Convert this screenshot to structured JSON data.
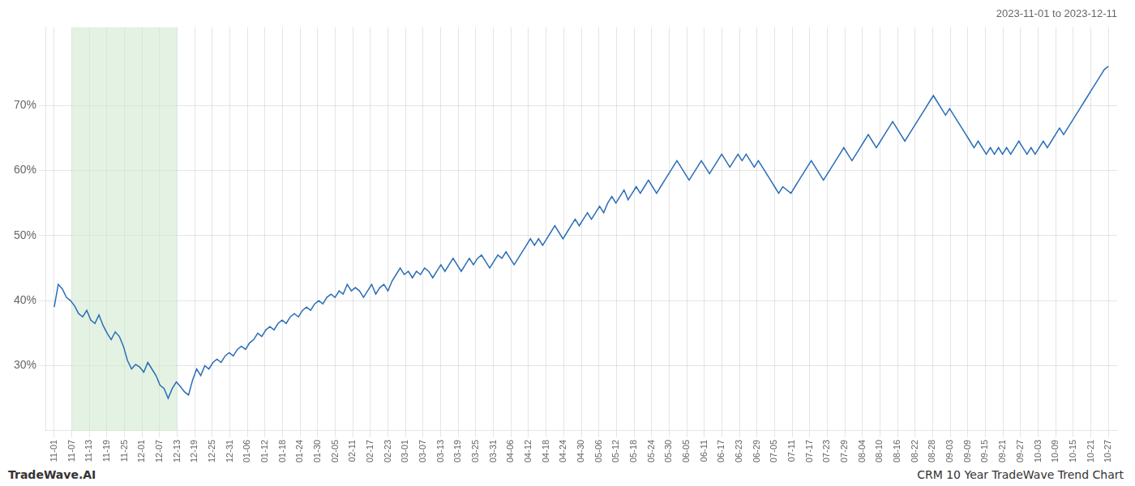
{
  "chart_data": {
    "type": "line",
    "title": "2023-11-01 to 2023-12-11",
    "annotations": [
      "TradeWave.AI",
      "CRM 10 Year TradeWave Trend Chart"
    ],
    "color": "#2a6db5",
    "grid": true,
    "highlight": {
      "x": [
        259,
        1813
      ],
      "color": "#cce8cc"
    },
    "xlim": [
      -129.5,
      15669.5
    ],
    "xticks": [
      {
        "value": 0,
        "label": "11-01"
      },
      {
        "value": 259,
        "label": "11-07"
      },
      {
        "value": 518,
        "label": "11-13"
      },
      {
        "value": 777,
        "label": "11-19"
      },
      {
        "value": 1036,
        "label": "11-25"
      },
      {
        "value": 1295,
        "label": "12-01"
      },
      {
        "value": 1554,
        "label": "12-07"
      },
      {
        "value": 1813,
        "label": "12-13"
      },
      {
        "value": 2072,
        "label": "12-19"
      },
      {
        "value": 2331,
        "label": "12-25"
      },
      {
        "value": 2590,
        "label": "12-31"
      },
      {
        "value": 2849,
        "label": "01-06"
      },
      {
        "value": 3108,
        "label": "01-12"
      },
      {
        "value": 3367,
        "label": "01-18"
      },
      {
        "value": 3626,
        "label": "01-24"
      },
      {
        "value": 3885,
        "label": "01-30"
      },
      {
        "value": 4144,
        "label": "02-05"
      },
      {
        "value": 4403,
        "label": "02-11"
      },
      {
        "value": 4662,
        "label": "02-17"
      },
      {
        "value": 4921,
        "label": "02-23"
      },
      {
        "value": 5180,
        "label": "03-01"
      },
      {
        "value": 5439,
        "label": "03-07"
      },
      {
        "value": 5698,
        "label": "03-13"
      },
      {
        "value": 5957,
        "label": "03-19"
      },
      {
        "value": 6216,
        "label": "03-25"
      },
      {
        "value": 6475,
        "label": "03-31"
      },
      {
        "value": 6734,
        "label": "04-06"
      },
      {
        "value": 6993,
        "label": "04-12"
      },
      {
        "value": 7252,
        "label": "04-18"
      },
      {
        "value": 7511,
        "label": "04-24"
      },
      {
        "value": 7770,
        "label": "04-30"
      },
      {
        "value": 8029,
        "label": "05-06"
      },
      {
        "value": 8288,
        "label": "05-12"
      },
      {
        "value": 8547,
        "label": "05-18"
      },
      {
        "value": 8806,
        "label": "05-24"
      },
      {
        "value": 9065,
        "label": "05-30"
      },
      {
        "value": 9324,
        "label": "06-05"
      },
      {
        "value": 9583,
        "label": "06-11"
      },
      {
        "value": 9842,
        "label": "06-17"
      },
      {
        "value": 10101,
        "label": "06-23"
      },
      {
        "value": 10360,
        "label": "06-29"
      },
      {
        "value": 10619,
        "label": "07-05"
      },
      {
        "value": 10878,
        "label": "07-11"
      },
      {
        "value": 11137,
        "label": "07-17"
      },
      {
        "value": 11396,
        "label": "07-23"
      },
      {
        "value": 11655,
        "label": "07-29"
      },
      {
        "value": 11914,
        "label": "08-04"
      },
      {
        "value": 12173,
        "label": "08-10"
      },
      {
        "value": 12432,
        "label": "08-16"
      },
      {
        "value": 12691,
        "label": "08-22"
      },
      {
        "value": 12950,
        "label": "08-28"
      },
      {
        "value": 13209,
        "label": "09-03"
      },
      {
        "value": 13468,
        "label": "09-09"
      },
      {
        "value": 13727,
        "label": "09-15"
      },
      {
        "value": 13986,
        "label": "09-21"
      },
      {
        "value": 14245,
        "label": "09-27"
      },
      {
        "value": 14504,
        "label": "10-03"
      },
      {
        "value": 14763,
        "label": "10-09"
      },
      {
        "value": 15022,
        "label": "10-15"
      },
      {
        "value": 15281,
        "label": "10-21"
      },
      {
        "value": 15540,
        "label": "10-27"
      }
    ],
    "ylim": [
      20,
      82
    ],
    "yticks": [
      {
        "value": 30,
        "label": "30%"
      },
      {
        "value": 40,
        "label": "40%"
      },
      {
        "value": 50,
        "label": "50%"
      },
      {
        "value": 60,
        "label": "60%"
      },
      {
        "value": 70,
        "label": "70%"
      }
    ],
    "x": [
      0,
      60,
      120,
      180,
      240,
      300,
      360,
      420,
      480,
      540,
      600,
      660,
      720,
      780,
      840,
      900,
      960,
      1020,
      1080,
      1140,
      1200,
      1260,
      1320,
      1380,
      1440,
      1500,
      1560,
      1620,
      1680,
      1740,
      1800,
      1860,
      1920,
      1980,
      2040,
      2100,
      2160,
      2220,
      2280,
      2340,
      2400,
      2460,
      2520,
      2580,
      2640,
      2700,
      2760,
      2820,
      2880,
      2940,
      3000,
      3060,
      3120,
      3180,
      3240,
      3300,
      3360,
      3420,
      3480,
      3540,
      3600,
      3660,
      3720,
      3780,
      3840,
      3900,
      3960,
      4020,
      4080,
      4140,
      4200,
      4260,
      4320,
      4380,
      4440,
      4500,
      4560,
      4620,
      4680,
      4740,
      4800,
      4860,
      4920,
      4980,
      5040,
      5100,
      5160,
      5220,
      5280,
      5340,
      5400,
      5460,
      5520,
      5580,
      5640,
      5700,
      5760,
      5820,
      5880,
      5940,
      6000,
      6060,
      6120,
      6180,
      6240,
      6300,
      6360,
      6420,
      6480,
      6540,
      6600,
      6660,
      6720,
      6780,
      6840,
      6900,
      6960,
      7020,
      7080,
      7140,
      7200,
      7260,
      7320,
      7380,
      7440,
      7500,
      7560,
      7620,
      7680,
      7740,
      7800,
      7860,
      7920,
      7980,
      8040,
      8100,
      8160,
      8220,
      8280,
      8340,
      8400,
      8460,
      8520,
      8580,
      8640,
      8700,
      8760,
      8820,
      8880,
      8940,
      9000,
      9060,
      9120,
      9180,
      9240,
      9300,
      9360,
      9420,
      9480,
      9540,
      9600,
      9660,
      9720,
      9780,
      9840,
      9900,
      9960,
      10020,
      10080,
      10140,
      10200,
      10260,
      10320,
      10380,
      10440,
      10500,
      10560,
      10620,
      10680,
      10740,
      10800,
      10860,
      10920,
      10980,
      11040,
      11100,
      11160,
      11220,
      11280,
      11340,
      11400,
      11460,
      11520,
      11580,
      11640,
      11700,
      11760,
      11820,
      11880,
      11940,
      12000,
      12060,
      12120,
      12180,
      12240,
      12300,
      12360,
      12420,
      12480,
      12540,
      12600,
      12660,
      12720,
      12780,
      12840,
      12900,
      12960,
      13020,
      13080,
      13140,
      13200,
      13260,
      13320,
      13380,
      13440,
      13500,
      13560,
      13620,
      13680,
      13740,
      13800,
      13860,
      13920,
      13980,
      14040,
      14100,
      14160,
      14220,
      14280,
      14340,
      14400,
      14460,
      14520,
      14580,
      14640,
      14700,
      14760,
      14820,
      14880,
      14940,
      15000,
      15060,
      15120,
      15180,
      15240,
      15300,
      15360,
      15420,
      15480,
      15540
    ],
    "values": [
      39.0,
      42.5,
      41.8,
      40.5,
      40.0,
      39.2,
      38.0,
      37.5,
      38.5,
      37.0,
      36.5,
      37.8,
      36.2,
      35.0,
      34.0,
      35.2,
      34.5,
      33.0,
      30.8,
      29.5,
      30.2,
      29.8,
      29.0,
      30.5,
      29.5,
      28.5,
      27.0,
      26.5,
      25.0,
      26.5,
      27.5,
      26.8,
      26.0,
      25.5,
      27.8,
      29.5,
      28.5,
      30.0,
      29.5,
      30.5,
      31.0,
      30.5,
      31.5,
      32.0,
      31.5,
      32.5,
      33.0,
      32.5,
      33.5,
      34.0,
      35.0,
      34.5,
      35.5,
      36.0,
      35.5,
      36.5,
      37.0,
      36.5,
      37.5,
      38.0,
      37.5,
      38.5,
      39.0,
      38.5,
      39.5,
      40.0,
      39.5,
      40.5,
      41.0,
      40.5,
      41.5,
      41.0,
      42.5,
      41.5,
      42.0,
      41.5,
      40.5,
      41.5,
      42.5,
      41.0,
      42.0,
      42.5,
      41.5,
      43.0,
      44.0,
      45.0,
      44.0,
      44.5,
      43.5,
      44.5,
      44.0,
      45.0,
      44.5,
      43.5,
      44.5,
      45.5,
      44.5,
      45.5,
      46.5,
      45.5,
      44.5,
      45.5,
      46.5,
      45.5,
      46.5,
      47.0,
      46.0,
      45.0,
      46.0,
      47.0,
      46.5,
      47.5,
      46.5,
      45.5,
      46.5,
      47.5,
      48.5,
      49.5,
      48.5,
      49.5,
      48.5,
      49.5,
      50.5,
      51.5,
      50.5,
      49.5,
      50.5,
      51.5,
      52.5,
      51.5,
      52.5,
      53.5,
      52.5,
      53.5,
      54.5,
      53.5,
      55.0,
      56.0,
      55.0,
      56.0,
      57.0,
      55.5,
      56.5,
      57.5,
      56.5,
      57.5,
      58.5,
      57.5,
      56.5,
      57.5,
      58.5,
      59.5,
      60.5,
      61.5,
      60.5,
      59.5,
      58.5,
      59.5,
      60.5,
      61.5,
      60.5,
      59.5,
      60.5,
      61.5,
      62.5,
      61.5,
      60.5,
      61.5,
      62.5,
      61.5,
      62.5,
      61.5,
      60.5,
      61.5,
      60.5,
      59.5,
      58.5,
      57.5,
      56.5,
      57.5,
      57.0,
      56.5,
      57.5,
      58.5,
      59.5,
      60.5,
      61.5,
      60.5,
      59.5,
      58.5,
      59.5,
      60.5,
      61.5,
      62.5,
      63.5,
      62.5,
      61.5,
      62.5,
      63.5,
      64.5,
      65.5,
      64.5,
      63.5,
      64.5,
      65.5,
      66.5,
      67.5,
      66.5,
      65.5,
      64.5,
      65.5,
      66.5,
      67.5,
      68.5,
      69.5,
      70.5,
      71.5,
      70.5,
      69.5,
      68.5,
      69.5,
      68.5,
      67.5,
      66.5,
      65.5,
      64.5,
      63.5,
      64.5,
      63.5,
      62.5,
      63.5,
      62.5,
      63.5,
      62.5,
      63.5,
      62.5,
      63.5,
      64.5,
      63.5,
      62.5,
      63.5,
      62.5,
      63.5,
      64.5,
      63.5,
      64.5,
      65.5,
      66.5,
      65.5,
      66.5,
      67.5,
      68.5,
      69.5,
      70.5,
      71.5,
      72.5,
      73.5,
      74.5,
      75.5,
      76.0
    ]
  }
}
